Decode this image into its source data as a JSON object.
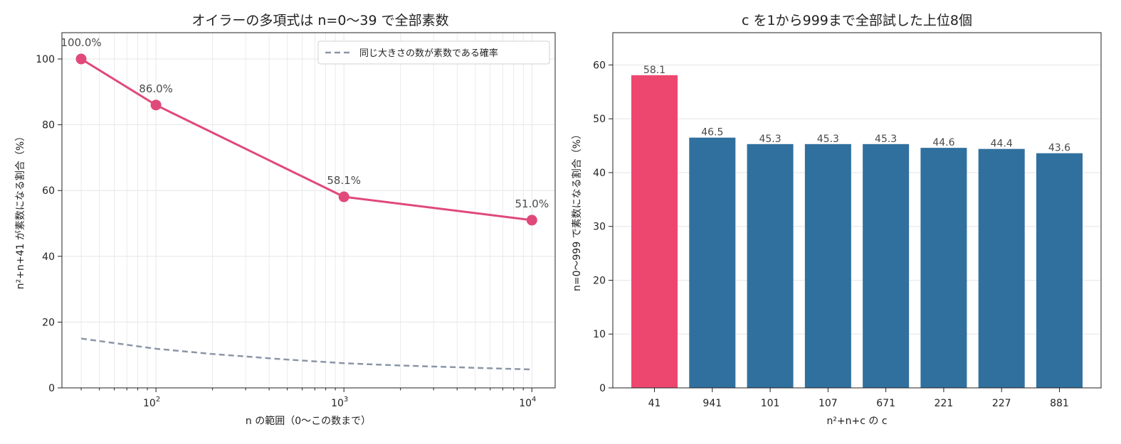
{
  "colors": {
    "line": "#e0497a",
    "dashed": "#8a96a8",
    "bar_highlight": "#ee476f",
    "bar_default": "#30709e",
    "grid": "#e6e6e6"
  },
  "chart_data": [
    {
      "type": "line",
      "title": "オイラーの多項式は n=0〜39 で全部素数",
      "xlabel": "n の範囲（0〜この数まで）",
      "ylabel": "n²+n+41 が素数になる割合（%）",
      "xscale": "log",
      "xlim": [
        31.6,
        13300
      ],
      "ylim": [
        0,
        108
      ],
      "xticks": [
        {
          "value": 100,
          "label": "10",
          "exp": "2"
        },
        {
          "value": 1000,
          "label": "10",
          "exp": "3"
        },
        {
          "value": 10000,
          "label": "10",
          "exp": "4"
        }
      ],
      "yticks": [
        0,
        20,
        40,
        60,
        80,
        100
      ],
      "grid": true,
      "legend_placement": "top-right",
      "series": [
        {
          "x": [
            40,
            100,
            1000,
            10000
          ],
          "y": [
            100.0,
            86.0,
            58.1,
            51.0
          ],
          "labels": [
            "100.0%",
            "86.0%",
            "58.1%",
            "51.0%"
          ],
          "style": "solid-markers"
        },
        {
          "name": "同じ大きさの数が素数である確率",
          "x": [
            40,
            100,
            200,
            500,
            1000,
            2000,
            5000,
            10000
          ],
          "y": [
            15.0,
            11.9,
            10.3,
            8.6,
            7.5,
            6.8,
            6.1,
            5.6
          ],
          "style": "dashed"
        }
      ]
    },
    {
      "type": "bar",
      "title": "c を1から999まで全部試した上位8個",
      "xlabel": "n²+n+c の c",
      "ylabel": "n=0〜999 で素数になる割合（%）",
      "ylim": [
        0,
        66
      ],
      "yticks": [
        0,
        10,
        20,
        30,
        40,
        50,
        60
      ],
      "grid": true,
      "categories": [
        "41",
        "941",
        "101",
        "107",
        "671",
        "221",
        "227",
        "881"
      ],
      "values": [
        58.1,
        46.5,
        45.3,
        45.3,
        45.3,
        44.6,
        44.4,
        43.6
      ],
      "labels": [
        "58.1",
        "46.5",
        "45.3",
        "45.3",
        "45.3",
        "44.6",
        "44.4",
        "43.6"
      ],
      "highlight_index": 0
    }
  ]
}
